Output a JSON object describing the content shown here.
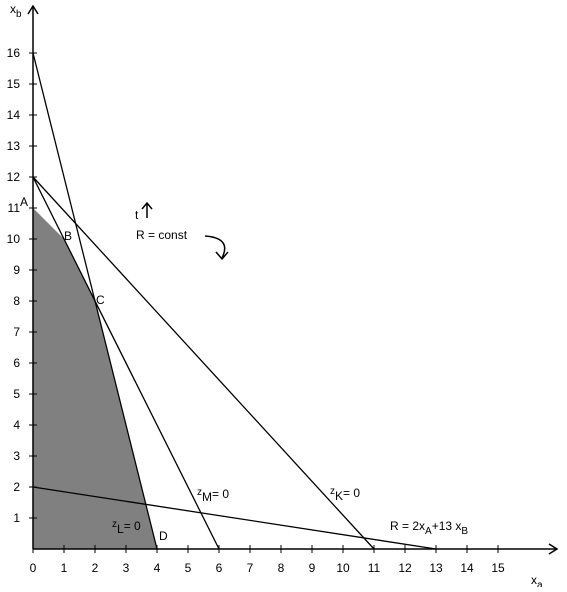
{
  "axes": {
    "x_label": {
      "main": "x",
      "sub": "a"
    },
    "y_label": {
      "main": "x",
      "sub": "b"
    },
    "x_ticks": [
      0,
      1,
      2,
      3,
      4,
      5,
      6,
      7,
      8,
      9,
      10,
      11,
      12,
      13,
      14,
      15
    ],
    "y_ticks": [
      1,
      2,
      3,
      4,
      5,
      6,
      7,
      8,
      9,
      10,
      11,
      12,
      13,
      14,
      15,
      16
    ]
  },
  "points": [
    {
      "label": "A"
    },
    {
      "label": "B"
    },
    {
      "label": "C"
    },
    {
      "label": "D"
    }
  ],
  "lines": {
    "zL": {
      "main": "z",
      "sub": "L",
      "rest": "= 0"
    },
    "zM": {
      "main": "z",
      "sub": "M",
      "rest": "= 0"
    },
    "zK": {
      "main": "z",
      "sub": "K",
      "rest": "= 0"
    },
    "objective": [
      "R = 2x",
      "A",
      "+13 x",
      "B"
    ]
  },
  "annotations": {
    "t": "t",
    "r_const": "R = const"
  }
}
